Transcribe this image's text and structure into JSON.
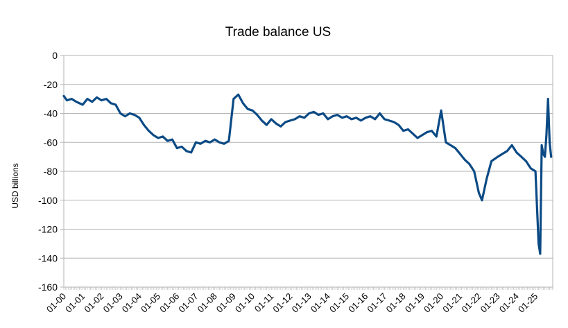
{
  "chart_data": {
    "type": "line",
    "title": "Trade balance US",
    "ylabel": "USD billions",
    "xlabel": "",
    "ylim": [
      -160,
      0
    ],
    "yticks": [
      0,
      -20,
      -40,
      -60,
      -80,
      -100,
      -120,
      -140,
      -160
    ],
    "grid": true,
    "legend": "none",
    "line_color": "#0b4a85",
    "x_tick_labels": [
      "01-00",
      "01-01",
      "01-02",
      "01-03",
      "01-04",
      "01-05",
      "01-06",
      "01-07",
      "01-08",
      "01-09",
      "01-10",
      "01-11",
      "01-12",
      "01-13",
      "01-14",
      "01-15",
      "01-16",
      "01-17",
      "01-18",
      "01-19",
      "01-20",
      "01-21",
      "01-22",
      "01-23",
      "01-24",
      "01-25"
    ],
    "series": [
      {
        "x": [
          "2000-01",
          "2000-03",
          "2000-06",
          "2000-09",
          "2001-01",
          "2001-04",
          "2001-07",
          "2001-10",
          "2002-01",
          "2002-04",
          "2002-07",
          "2002-10",
          "2003-01",
          "2003-04",
          "2003-07",
          "2003-10",
          "2004-01",
          "2004-04",
          "2004-07",
          "2004-10",
          "2005-01",
          "2005-04",
          "2005-07",
          "2005-10",
          "2006-01",
          "2006-04",
          "2006-07",
          "2006-10",
          "2007-01",
          "2007-04",
          "2007-07",
          "2007-10",
          "2008-01",
          "2008-04",
          "2008-07",
          "2008-10",
          "2009-01",
          "2009-04",
          "2009-07",
          "2009-10",
          "2010-01",
          "2010-04",
          "2010-07",
          "2010-10",
          "2011-01",
          "2011-04",
          "2011-07",
          "2011-10",
          "2012-01",
          "2012-04",
          "2012-07",
          "2012-10",
          "2013-01",
          "2013-04",
          "2013-07",
          "2013-10",
          "2014-01",
          "2014-04",
          "2014-07",
          "2014-10",
          "2015-01",
          "2015-04",
          "2015-07",
          "2015-10",
          "2016-01",
          "2016-04",
          "2016-07",
          "2016-10",
          "2017-01",
          "2017-04",
          "2017-07",
          "2017-10",
          "2018-01",
          "2018-04",
          "2018-07",
          "2018-10",
          "2019-01",
          "2019-04",
          "2019-07",
          "2019-10",
          "2020-01",
          "2020-04",
          "2020-07",
          "2020-10",
          "2021-01",
          "2021-04",
          "2021-07",
          "2021-10",
          "2022-01",
          "2022-03",
          "2022-06",
          "2022-09",
          "2023-01",
          "2023-04",
          "2023-07",
          "2023-10",
          "2024-01",
          "2024-04",
          "2024-07",
          "2024-10",
          "2025-01",
          "2025-03",
          "2025-04",
          "2025-05",
          "2025-06",
          "2025-07",
          "2025-08",
          "2025-09",
          "2025-10",
          "2025-11"
        ],
        "values": [
          -28,
          -31,
          -30,
          -32,
          -34,
          -30,
          -32,
          -29,
          -31,
          -30,
          -33,
          -34,
          -40,
          -42,
          -40,
          -41,
          -43,
          -48,
          -52,
          -55,
          -57,
          -56,
          -59,
          -58,
          -64,
          -63,
          -66,
          -67,
          -60,
          -61,
          -59,
          -60,
          -58,
          -60,
          -61,
          -59,
          -30,
          -27,
          -33,
          -37,
          -38,
          -41,
          -45,
          -48,
          -44,
          -47,
          -49,
          -46,
          -45,
          -44,
          -42,
          -43,
          -40,
          -39,
          -41,
          -40,
          -44,
          -42,
          -41,
          -43,
          -42,
          -44,
          -43,
          -45,
          -43,
          -42,
          -44,
          -40,
          -44,
          -45,
          -46,
          -48,
          -52,
          -51,
          -54,
          -57,
          -55,
          -53,
          -52,
          -56,
          -38,
          -60,
          -62,
          -64,
          -68,
          -72,
          -75,
          -80,
          -95,
          -100,
          -85,
          -73,
          -70,
          -68,
          -66,
          -62,
          -67,
          -70,
          -73,
          -78,
          -80,
          -130,
          -137,
          -62,
          -68,
          -70,
          -55,
          -30,
          -60,
          -70
        ]
      }
    ]
  }
}
